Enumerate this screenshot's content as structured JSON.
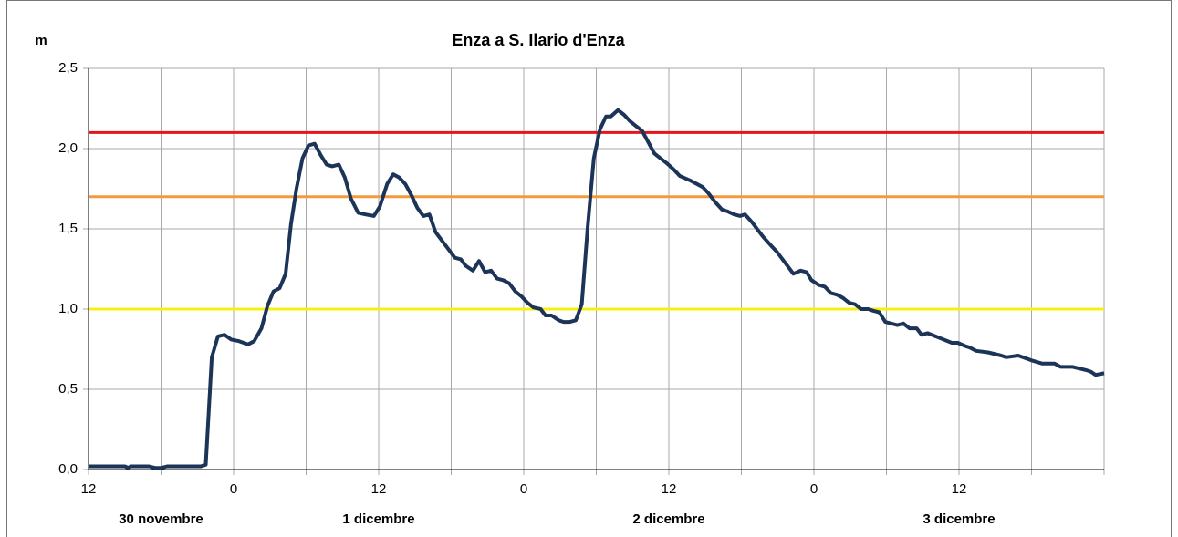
{
  "chart_data": {
    "type": "line",
    "title": "Enza a S. Ilario d'Enza",
    "ylabel": "m",
    "x": [
      0,
      3,
      3.3,
      3.5,
      5,
      5.5,
      6,
      6.5,
      9.3,
      9.7,
      10.2,
      10.7,
      11.25,
      11.8,
      12.45,
      13.2,
      13.7,
      14.3,
      14.8,
      15.3,
      15.8,
      16.3,
      16.75,
      17.2,
      17.7,
      18.2,
      18.7,
      19.2,
      19.7,
      20.15,
      20.7,
      21.2,
      21.7,
      22.3,
      22.9,
      23.6,
      24.1,
      24.7,
      25.2,
      25.7,
      26.2,
      26.7,
      27.2,
      27.7,
      28.2,
      28.7,
      29.3,
      29.8,
      30.3,
      30.8,
      31.2,
      31.8,
      32.3,
      32.8,
      33.3,
      33.8,
      34.3,
      34.8,
      35.3,
      35.8,
      36.3,
      36.8,
      37.4,
      37.8,
      38.3,
      38.9,
      39.3,
      39.8,
      40.3,
      40.8,
      41.3,
      41.8,
      42.3,
      42.8,
      43.2,
      43.8,
      44.3,
      44.8,
      45.3,
      45.8,
      46.3,
      46.8,
      47.3,
      47.8,
      48.4,
      48.9,
      49.8,
      50.3,
      50.8,
      51.3,
      51.8,
      52.4,
      52.8,
      53.4,
      53.9,
      54.3,
      54.9,
      55.4,
      55.8,
      56.4,
      56.9,
      57.4,
      57.9,
      58.3,
      58.9,
      59.4,
      59.8,
      60.4,
      60.9,
      61.4,
      61.9,
      62.4,
      62.9,
      63.4,
      63.9,
      64.5,
      64.9,
      65.4,
      65.9,
      66.4,
      66.9,
      67.4,
      67.9,
      68.5,
      68.9,
      69.4,
      70.4,
      71.4,
      71.9,
      72.5,
      72.9,
      73.4,
      74.4,
      75.5,
      75.9,
      76.9,
      78.0,
      78.9,
      79.9,
      80.4,
      81.4,
      82.5,
      82.9,
      83.3,
      84
    ],
    "series": [
      {
        "color": "#1c3457",
        "values": [
          0.02,
          0.02,
          0.01,
          0.02,
          0.02,
          0.01,
          0.01,
          0.02,
          0.02,
          0.03,
          0.7,
          0.83,
          0.84,
          0.81,
          0.8,
          0.78,
          0.8,
          0.88,
          1.02,
          1.11,
          1.13,
          1.22,
          1.53,
          1.75,
          1.94,
          2.02,
          2.03,
          1.96,
          1.9,
          1.89,
          1.9,
          1.82,
          1.69,
          1.6,
          1.59,
          1.58,
          1.64,
          1.78,
          1.84,
          1.82,
          1.78,
          1.71,
          1.63,
          1.58,
          1.59,
          1.48,
          1.42,
          1.37,
          1.32,
          1.31,
          1.27,
          1.24,
          1.3,
          1.23,
          1.24,
          1.19,
          1.18,
          1.16,
          1.11,
          1.08,
          1.04,
          1.01,
          1.0,
          0.96,
          0.96,
          0.93,
          0.92,
          0.92,
          0.93,
          1.03,
          1.52,
          1.94,
          2.12,
          2.2,
          2.2,
          2.24,
          2.21,
          2.17,
          2.14,
          2.11,
          2.04,
          1.97,
          1.94,
          1.91,
          1.87,
          1.83,
          1.8,
          1.78,
          1.76,
          1.72,
          1.67,
          1.62,
          1.61,
          1.59,
          1.58,
          1.59,
          1.54,
          1.49,
          1.45,
          1.4,
          1.36,
          1.31,
          1.26,
          1.22,
          1.24,
          1.23,
          1.18,
          1.15,
          1.14,
          1.1,
          1.09,
          1.07,
          1.04,
          1.03,
          1.0,
          1.0,
          0.99,
          0.98,
          0.92,
          0.91,
          0.9,
          0.91,
          0.88,
          0.88,
          0.84,
          0.85,
          0.82,
          0.79,
          0.79,
          0.77,
          0.76,
          0.74,
          0.73,
          0.71,
          0.7,
          0.71,
          0.68,
          0.66,
          0.66,
          0.64,
          0.64,
          0.62,
          0.61,
          0.59,
          0.6
        ]
      }
    ],
    "thresholds": [
      {
        "value": 2.1,
        "color": "#e8141b"
      },
      {
        "value": 1.7,
        "color": "#f59a3c"
      },
      {
        "value": 1.0,
        "color": "#f5f010"
      }
    ],
    "xlim": [
      0,
      84
    ],
    "xticks": [
      {
        "value": 0,
        "label": "12"
      },
      {
        "value": 12,
        "label": "0"
      },
      {
        "value": 24,
        "label": "12"
      },
      {
        "value": 36,
        "label": "0"
      },
      {
        "value": 48,
        "label": "12"
      },
      {
        "value": 60,
        "label": "0"
      },
      {
        "value": 72,
        "label": "12"
      }
    ],
    "xminor": [
      6,
      18,
      30,
      42,
      54,
      66,
      78,
      84
    ],
    "days": [
      "30 novembre",
      "1 dicembre",
      "2 dicembre",
      "3 dicembre"
    ],
    "ylim": [
      0,
      2.5
    ],
    "yticks": [
      {
        "value": 0,
        "label": "0,0"
      },
      {
        "value": 0.5,
        "label": "0,5"
      },
      {
        "value": 1,
        "label": "1,0"
      },
      {
        "value": 1.5,
        "label": "1,5"
      },
      {
        "value": 2,
        "label": "2,0"
      },
      {
        "value": 2.5,
        "label": "2,5"
      }
    ],
    "grid": true
  }
}
